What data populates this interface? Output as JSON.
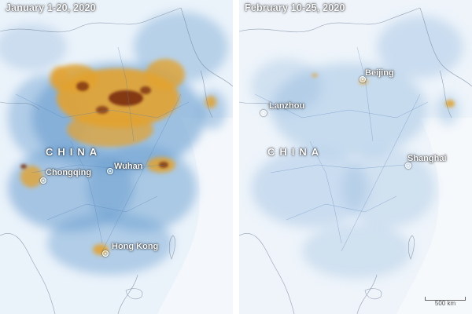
{
  "panels": [
    {
      "title": "January 1-20, 2020",
      "country": "CHINA",
      "cities": [
        "Chongqing",
        "Wuhan",
        "Hong Kong"
      ]
    },
    {
      "title": "February 10-25, 2020",
      "country": "CHINA",
      "cities": [
        "Beijing",
        "Lanzhou",
        "Shanghai"
      ]
    }
  ],
  "scale_bar": {
    "label": "500 km"
  },
  "colors": {
    "background": "#ffffff",
    "map_base": "#eaf2fa",
    "low_concentration": "#6b9fd0",
    "medium_concentration": "#e2a230",
    "high_concentration": "#7a2e0c"
  }
}
